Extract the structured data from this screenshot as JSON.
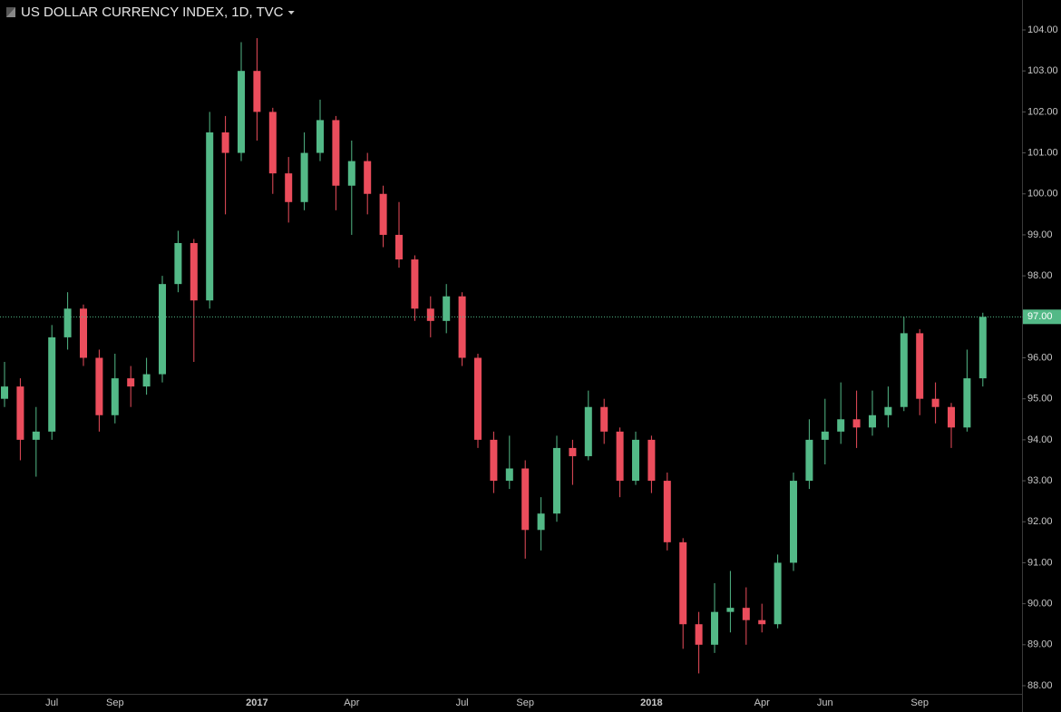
{
  "chart_data": {
    "type": "candlestick",
    "title": "US DOLLAR CURRENCY INDEX, 1D, TVC",
    "categories": [
      null,
      null,
      null,
      "Jul",
      null,
      null,
      null,
      "Sep",
      null,
      null,
      null,
      null,
      null,
      null,
      null,
      null,
      "2017",
      null,
      null,
      null,
      null,
      null,
      "Apr",
      null,
      null,
      null,
      null,
      null,
      null,
      "Jul",
      null,
      null,
      null,
      "Sep",
      null,
      null,
      null,
      null,
      null,
      null,
      null,
      "2018",
      null,
      null,
      null,
      null,
      null,
      null,
      "Apr",
      null,
      null,
      null,
      "Jun",
      null,
      null,
      null,
      null,
      null,
      "Sep",
      null,
      null,
      null,
      null
    ],
    "open": [
      95.0,
      95.3,
      94.0,
      94.2,
      96.5,
      97.2,
      96.0,
      94.6,
      95.5,
      95.3,
      95.6,
      97.8,
      98.8,
      97.4,
      101.5,
      101.0,
      103.0,
      102.0,
      100.5,
      99.8,
      101.0,
      101.8,
      100.2,
      100.8,
      100.0,
      99.0,
      98.4,
      97.2,
      96.9,
      97.5,
      96.0,
      94.0,
      93.0,
      93.3,
      91.8,
      92.2,
      93.8,
      93.6,
      94.8,
      94.2,
      93.0,
      94.0,
      93.0,
      91.5,
      89.5,
      89.0,
      89.8,
      89.9,
      89.6,
      89.5,
      91.0,
      93.0,
      94.0,
      94.2,
      94.5,
      94.3,
      94.6,
      94.8,
      96.6,
      95.0,
      94.8,
      94.3,
      95.5
    ],
    "high": [
      95.9,
      95.5,
      94.8,
      96.8,
      97.6,
      97.3,
      96.2,
      96.1,
      95.8,
      96.0,
      98.0,
      99.1,
      98.9,
      102.0,
      101.9,
      103.7,
      103.8,
      102.1,
      100.9,
      101.5,
      102.3,
      101.9,
      101.3,
      101.0,
      100.2,
      99.8,
      98.5,
      97.5,
      97.8,
      97.6,
      96.1,
      94.2,
      94.1,
      93.5,
      92.6,
      94.1,
      94.0,
      95.2,
      95.0,
      94.3,
      94.2,
      94.1,
      93.2,
      91.6,
      89.8,
      90.5,
      90.8,
      90.4,
      90.0,
      91.2,
      93.2,
      94.5,
      95.0,
      95.4,
      95.2,
      95.2,
      95.3,
      97.0,
      96.7,
      95.4,
      94.9,
      96.2,
      97.1
    ],
    "low": [
      94.8,
      93.5,
      93.1,
      94.0,
      96.2,
      95.8,
      94.2,
      94.4,
      94.8,
      95.1,
      95.4,
      97.6,
      95.9,
      97.2,
      99.5,
      100.8,
      101.3,
      100.0,
      99.3,
      99.6,
      100.8,
      99.6,
      99.0,
      99.5,
      98.7,
      98.2,
      96.9,
      96.5,
      96.6,
      95.8,
      93.8,
      92.7,
      92.8,
      91.1,
      91.3,
      92.0,
      92.9,
      93.5,
      93.9,
      92.6,
      92.9,
      92.7,
      91.3,
      88.9,
      88.3,
      88.8,
      89.3,
      89.0,
      89.3,
      89.4,
      90.8,
      92.8,
      93.4,
      93.9,
      93.8,
      94.1,
      94.3,
      94.7,
      94.6,
      94.4,
      93.8,
      94.2,
      95.3
    ],
    "close": [
      95.3,
      94.0,
      94.2,
      96.5,
      97.2,
      96.0,
      94.6,
      95.5,
      95.3,
      95.6,
      97.8,
      98.8,
      97.4,
      101.5,
      101.0,
      103.0,
      102.0,
      100.5,
      99.8,
      101.0,
      101.8,
      100.2,
      100.8,
      100.0,
      99.0,
      98.4,
      97.2,
      96.9,
      97.5,
      96.0,
      94.0,
      93.0,
      93.3,
      91.8,
      92.2,
      93.8,
      93.6,
      94.8,
      94.2,
      93.0,
      94.0,
      93.0,
      91.5,
      89.5,
      89.0,
      89.8,
      89.9,
      89.6,
      89.5,
      91.0,
      93.0,
      94.0,
      94.2,
      94.5,
      94.3,
      94.6,
      94.8,
      96.6,
      95.0,
      94.8,
      94.3,
      95.5,
      97.0
    ],
    "up_color": "#53b987",
    "down_color": "#eb4d5c",
    "ylim": [
      88,
      104
    ],
    "yticks": [
      {
        "value": 88,
        "label": "88.00"
      },
      {
        "value": 89,
        "label": "89.00"
      },
      {
        "value": 90,
        "label": "90.00"
      },
      {
        "value": 91,
        "label": "91.00"
      },
      {
        "value": 92,
        "label": "92.00"
      },
      {
        "value": 93,
        "label": "93.00"
      },
      {
        "value": 94,
        "label": "94.00"
      },
      {
        "value": 95,
        "label": "95.00"
      },
      {
        "value": 96,
        "label": "96.00"
      },
      {
        "value": 97,
        "label": "97.00"
      },
      {
        "value": 98,
        "label": "98.00"
      },
      {
        "value": 99,
        "label": "99.00"
      },
      {
        "value": 100,
        "label": "100.00"
      },
      {
        "value": 101,
        "label": "101.00"
      },
      {
        "value": 102,
        "label": "102.00"
      },
      {
        "value": 103,
        "label": "103.00"
      },
      {
        "value": 104,
        "label": "104.00"
      }
    ],
    "last_price": {
      "value": 97,
      "label": "97.00"
    }
  }
}
